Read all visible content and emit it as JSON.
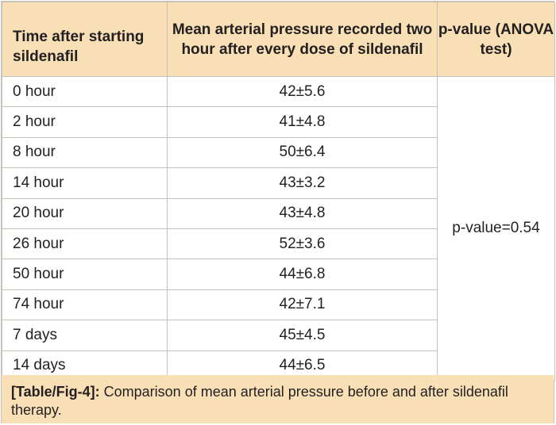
{
  "table": {
    "headers": {
      "time": "Time after starting sildenafil",
      "map": "Mean arterial pressure recorded two hour after every dose of sildenafil",
      "p": "p-value (ANOVA test)"
    },
    "rows": [
      {
        "time": "0 hour",
        "map": "42±5.6"
      },
      {
        "time": "2 hour",
        "map": "41±4.8"
      },
      {
        "time": "8 hour",
        "map": "50±6.4"
      },
      {
        "time": "14 hour",
        "map": "43±3.2"
      },
      {
        "time": "20 hour",
        "map": "43±4.8"
      },
      {
        "time": "26 hour",
        "map": "52±3.6"
      },
      {
        "time": "50 hour",
        "map": "44±6.8"
      },
      {
        "time": "74 hour",
        "map": "42±7.1"
      },
      {
        "time": "7 days",
        "map": "45±4.5"
      },
      {
        "time": "14 days",
        "map": "44±6.5"
      }
    ],
    "p_value": "p-value=0.54"
  },
  "caption": {
    "label": "[Table/Fig-4]:",
    "text": " Comparison of mean arterial pressure before and after sildenafil therapy."
  },
  "colors": {
    "header_bg": "#f8dfb6",
    "border": "#c8c1ba",
    "text": "#231f20"
  }
}
